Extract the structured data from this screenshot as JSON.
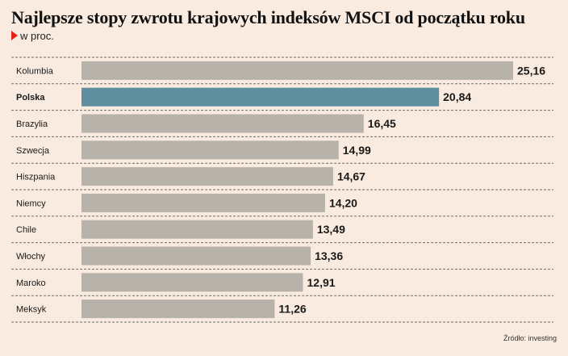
{
  "title": "Najlepsze stopy zwrotu krajowych indeksów MSCI od początku roku",
  "subtitle": "w proc.",
  "source": "Źródło: investing",
  "colors": {
    "background": "#f9ebdf",
    "bar": "#b7b3aa",
    "highlight": "#5f8e9e",
    "marker": "#e2231a",
    "divider": "#6f6f6f"
  },
  "chart_data": {
    "type": "bar",
    "orientation": "horizontal",
    "categories": [
      "Kolumbia",
      "Polska",
      "Brazylia",
      "Szwecja",
      "Hiszpania",
      "Niemcy",
      "Chile",
      "Włochy",
      "Maroko",
      "Meksyk"
    ],
    "values": [
      25.16,
      20.84,
      16.45,
      14.99,
      14.67,
      14.2,
      13.49,
      13.36,
      12.91,
      11.26
    ],
    "value_labels": [
      "25,16",
      "20,84",
      "16,45",
      "14,99",
      "14,67",
      "14,20",
      "13,49",
      "13,36",
      "12,91",
      "11,26"
    ],
    "highlighted_category": "Polska",
    "xlim": [
      0,
      25.16
    ],
    "grid": false
  }
}
